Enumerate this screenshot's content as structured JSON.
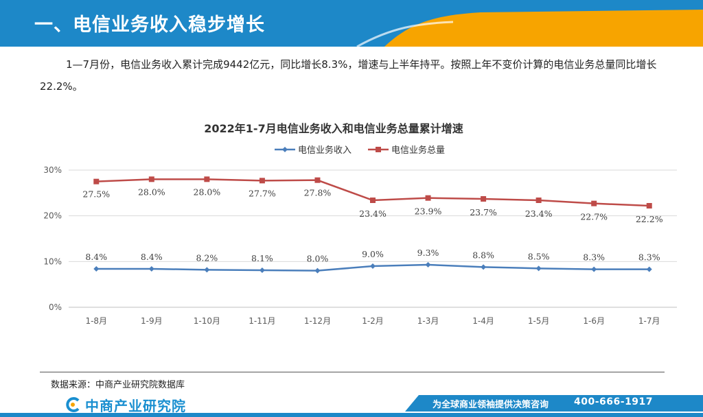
{
  "header": {
    "title": "一、电信业务收入稳步增长"
  },
  "summary": {
    "text": "1—7月份，电信业务收入累计完成9442亿元，同比增长8.3%，增速与上半年持平。按照上年不变价计算的电信业务总量同比增长22.2%。"
  },
  "colors": {
    "header_blue": "#1d88c8",
    "header_orange": "#f7a400",
    "series_revenue": "#4a7ebb",
    "series_volume": "#be4b48"
  },
  "chart_data": {
    "type": "line",
    "title": "2022年1-7月电信业务收入和电信业务总量累计增速",
    "categories": [
      "1-8月",
      "1-9月",
      "1-10月",
      "1-11月",
      "1-12月",
      "1-2月",
      "1-3月",
      "1-4月",
      "1-5月",
      "1-6月",
      "1-7月"
    ],
    "series": [
      {
        "name": "电信业务收入",
        "values": [
          8.4,
          8.4,
          8.2,
          8.1,
          8.0,
          9.0,
          9.3,
          8.8,
          8.5,
          8.3,
          8.3
        ],
        "labels": [
          "8.4%",
          "8.4%",
          "8.2%",
          "8.1%",
          "8.0%",
          "9.0%",
          "9.3%",
          "8.8%",
          "8.5%",
          "8.3%",
          "8.3%"
        ],
        "marker": "diamond"
      },
      {
        "name": "电信业务总量",
        "values": [
          27.5,
          28.0,
          28.0,
          27.7,
          27.8,
          23.4,
          23.9,
          23.7,
          23.4,
          22.7,
          22.2
        ],
        "labels": [
          "27.5%",
          "28.0%",
          "28.0%",
          "27.7%",
          "27.8%",
          "23.4%",
          "23.9%",
          "23.7%",
          "23.4%",
          "22.7%",
          "22.2%"
        ],
        "marker": "square"
      }
    ],
    "yticks": [
      "0%",
      "10%",
      "20%",
      "30%"
    ],
    "ylim": [
      0,
      30
    ],
    "legend_position": "top",
    "grid": true
  },
  "source": {
    "text": "数据来源：中商产业研究院数据库"
  },
  "footer": {
    "logo_text": "中商产业研究院",
    "slogan": "为全球商业领袖提供决策咨询",
    "phone": "400-666-1917"
  }
}
